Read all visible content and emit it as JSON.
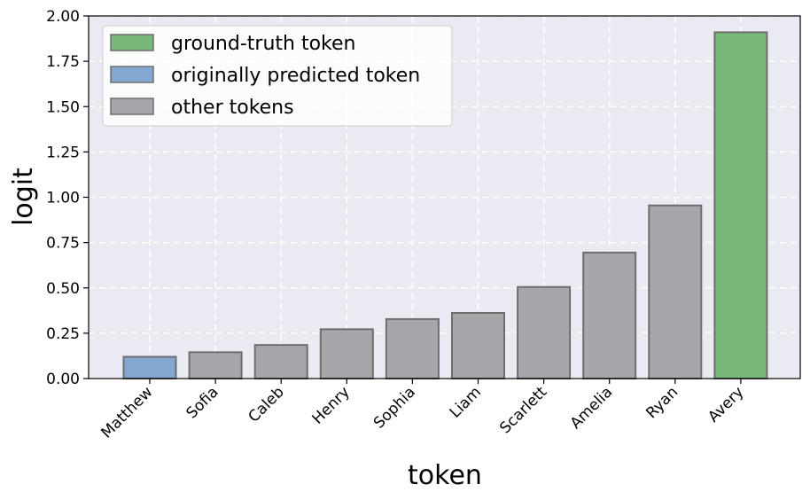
{
  "chart_data": {
    "type": "bar",
    "xlabel": "token",
    "ylabel": "logit",
    "ylim": [
      0,
      2.0
    ],
    "yticks": [
      "0.00",
      "0.25",
      "0.50",
      "0.75",
      "1.00",
      "1.25",
      "1.50",
      "1.75",
      "2.00"
    ],
    "categories": [
      "Matthew",
      "Sofia",
      "Caleb",
      "Henry",
      "Sophia",
      "Liam",
      "Scarlett",
      "Amelia",
      "Ryan",
      "Avery"
    ],
    "values": [
      0.12,
      0.145,
      0.185,
      0.272,
      0.328,
      0.362,
      0.505,
      0.695,
      0.955,
      1.91
    ],
    "bar_roles": [
      "predicted",
      "other",
      "other",
      "other",
      "other",
      "other",
      "other",
      "other",
      "other",
      "ground_truth"
    ],
    "grid": true,
    "legend_position": "top-left",
    "legend": [
      {
        "role": "ground_truth",
        "label": "ground-truth token",
        "color": "#78b878"
      },
      {
        "role": "predicted",
        "label": "originally predicted token",
        "color": "#82a8d2"
      },
      {
        "role": "other",
        "label": "other tokens",
        "color": "#a7a6ab"
      }
    ],
    "colors": {
      "plot_background": "#eaeaf2",
      "bar_edge": "#6e6e6e",
      "grid": "#ffffff"
    }
  }
}
